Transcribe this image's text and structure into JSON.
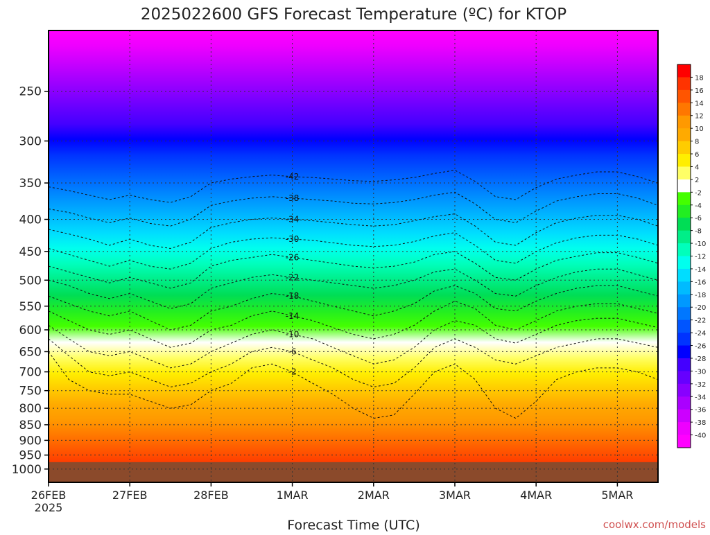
{
  "chart_data": {
    "type": "heatmap",
    "title": "2025022600 GFS Forecast Temperature (ºC) for KTOP",
    "xlabel": "Forecast Time (UTC)",
    "ylabel": "",
    "credit": "coolwx.com/models",
    "x_ticks": [
      "26FEB",
      "27FEB",
      "28FEB",
      "1MAR",
      "2MAR",
      "3MAR",
      "4MAR",
      "5MAR"
    ],
    "x_tick_sublabel": "2025",
    "x_range_days": [
      0,
      7.5
    ],
    "y_ticks": [
      250,
      300,
      350,
      400,
      450,
      500,
      550,
      600,
      650,
      700,
      750,
      800,
      850,
      900,
      950,
      1000
    ],
    "y_range_hpa": [
      200,
      1050
    ],
    "y_scale": "log-pressure (inverted)",
    "colorbar": {
      "labels": [
        "18",
        "16",
        "14",
        "12",
        "10",
        "8",
        "6",
        "4",
        "2",
        "-2",
        "-4",
        "-6",
        "-8",
        "-10",
        "-12",
        "-14",
        "-16",
        "-18",
        "-20",
        "-22",
        "-24",
        "-26",
        "-28",
        "-30",
        "-32",
        "-34",
        "-36",
        "-38",
        "-40"
      ],
      "colors": [
        "#ff0000",
        "#ff3300",
        "#ff5500",
        "#ff7700",
        "#ff9900",
        "#ffaa00",
        "#ffcc00",
        "#ffee00",
        "#ffff66",
        "#ffffff",
        "#44ff00",
        "#22ee22",
        "#00dd55",
        "#00ee88",
        "#00ffbb",
        "#00ffee",
        "#00ddff",
        "#00bbff",
        "#0099ff",
        "#0077ff",
        "#0055ff",
        "#0033ff",
        "#0000ff",
        "#4400ff",
        "#6600ff",
        "#8800ff",
        "#aa00ff",
        "#cc00ff",
        "#ee00ff",
        "#ff00ff"
      ]
    },
    "surface_color": "#8b4a2b",
    "isotherms": [
      {
        "label": "-2",
        "values": [
          650,
          720,
          750,
          760,
          760,
          780,
          800,
          790,
          750,
          730,
          690,
          680,
          700,
          730,
          760,
          800,
          830,
          820,
          760,
          700,
          680,
          720,
          800,
          830,
          780,
          720,
          700,
          690,
          690,
          700,
          720
        ]
      },
      {
        "label": "-6",
        "values": [
          620,
          660,
          700,
          710,
          700,
          720,
          740,
          730,
          700,
          680,
          650,
          640,
          650,
          670,
          690,
          720,
          740,
          730,
          690,
          640,
          620,
          640,
          670,
          680,
          660,
          640,
          630,
          620,
          620,
          630,
          640
        ]
      },
      {
        "label": "-10",
        "values": [
          590,
          620,
          650,
          660,
          650,
          670,
          690,
          680,
          650,
          630,
          610,
          600,
          610,
          620,
          640,
          660,
          680,
          670,
          640,
          600,
          580,
          590,
          620,
          630,
          610,
          590,
          580,
          575,
          575,
          585,
          595
        ]
      },
      {
        "label": "-14",
        "values": [
          560,
          580,
          600,
          610,
          600,
          620,
          640,
          630,
          600,
          590,
          570,
          560,
          570,
          580,
          595,
          610,
          620,
          610,
          590,
          560,
          540,
          555,
          590,
          600,
          580,
          560,
          550,
          545,
          545,
          555,
          565
        ]
      },
      {
        "label": "-18",
        "values": [
          530,
          545,
          560,
          570,
          560,
          580,
          600,
          590,
          560,
          550,
          535,
          525,
          530,
          540,
          550,
          560,
          570,
          560,
          545,
          520,
          510,
          525,
          555,
          560,
          540,
          525,
          515,
          510,
          510,
          520,
          530
        ]
      },
      {
        "label": "-22",
        "values": [
          500,
          510,
          525,
          535,
          525,
          540,
          555,
          545,
          515,
          505,
          495,
          490,
          495,
          500,
          505,
          510,
          515,
          510,
          500,
          485,
          480,
          500,
          525,
          530,
          510,
          495,
          485,
          480,
          480,
          490,
          500
        ]
      },
      {
        "label": "-26",
        "values": [
          475,
          485,
          495,
          505,
          495,
          505,
          515,
          505,
          475,
          465,
          460,
          455,
          460,
          465,
          470,
          475,
          478,
          475,
          468,
          455,
          450,
          470,
          495,
          500,
          480,
          465,
          458,
          452,
          452,
          460,
          470
        ]
      },
      {
        "label": "-30",
        "values": [
          445,
          455,
          465,
          475,
          465,
          475,
          480,
          470,
          445,
          435,
          430,
          428,
          430,
          432,
          436,
          440,
          442,
          440,
          434,
          425,
          420,
          440,
          465,
          470,
          450,
          436,
          428,
          424,
          424,
          430,
          440
        ]
      },
      {
        "label": "-34",
        "values": [
          415,
          422,
          430,
          440,
          430,
          440,
          445,
          435,
          412,
          405,
          400,
          398,
          400,
          402,
          405,
          408,
          410,
          408,
          402,
          396,
          392,
          410,
          435,
          440,
          420,
          405,
          398,
          394,
          394,
          400,
          410
        ]
      },
      {
        "label": "-38",
        "values": [
          385,
          390,
          398,
          405,
          398,
          406,
          410,
          400,
          380,
          374,
          370,
          368,
          370,
          372,
          374,
          377,
          378,
          376,
          372,
          366,
          362,
          378,
          400,
          405,
          388,
          374,
          368,
          364,
          364,
          370,
          380
        ]
      },
      {
        "label": "-42",
        "values": [
          355,
          360,
          366,
          372,
          366,
          372,
          376,
          368,
          350,
          345,
          342,
          340,
          342,
          343,
          345,
          347,
          348,
          346,
          343,
          338,
          334,
          348,
          368,
          372,
          356,
          345,
          340,
          336,
          336,
          342,
          350
        ]
      }
    ]
  }
}
